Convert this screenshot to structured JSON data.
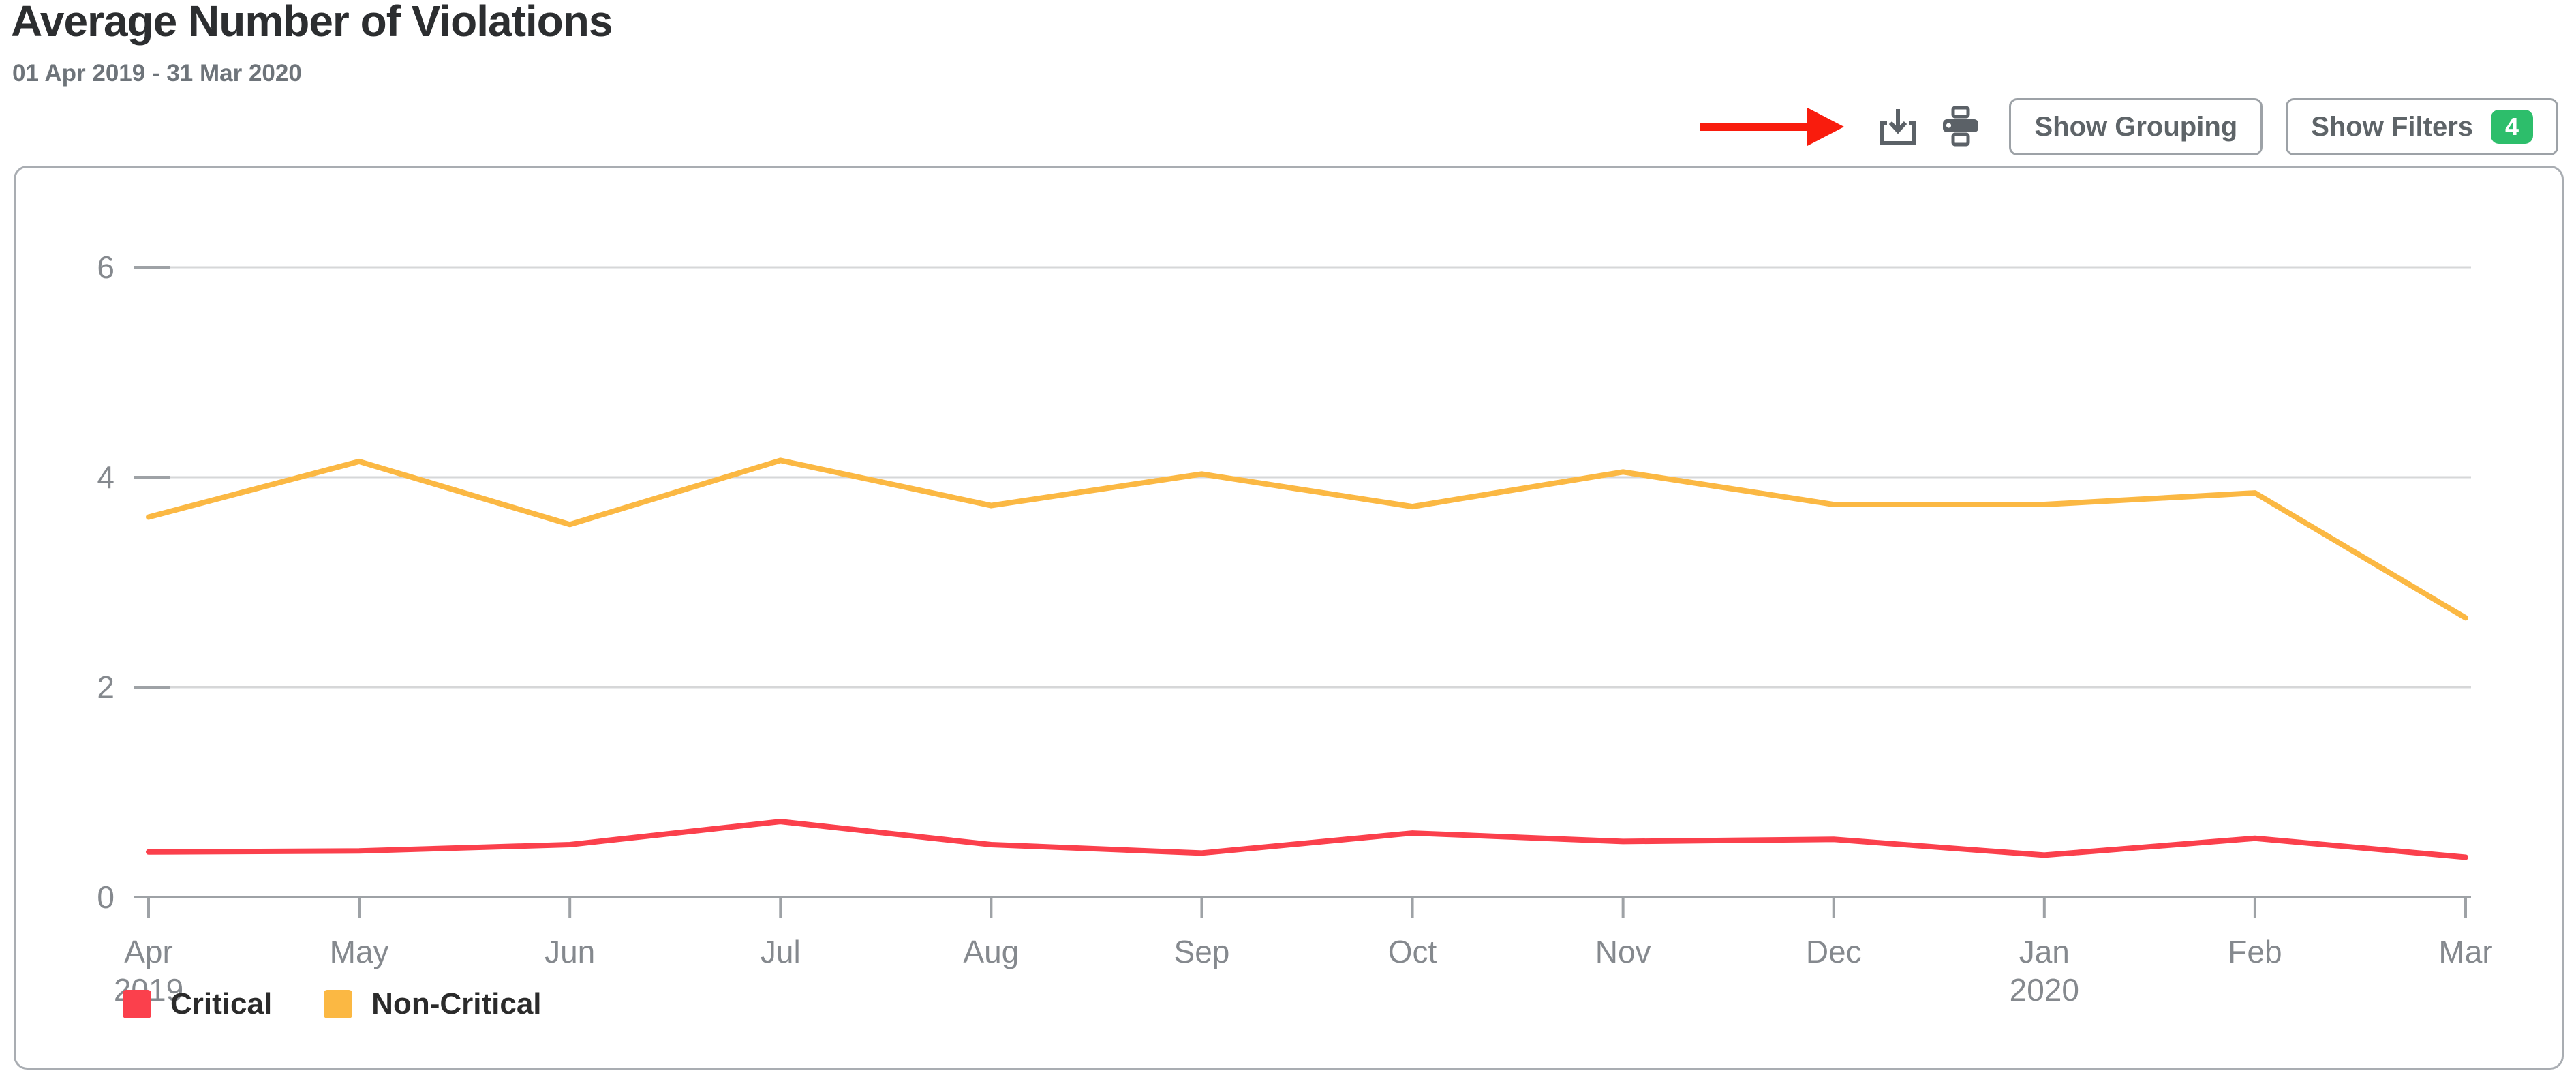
{
  "header": {
    "title": "Average Number of Violations",
    "date_range": "01 Apr 2019 - 31 Mar 2020"
  },
  "toolbar": {
    "download_icon": "download-icon",
    "print_icon": "print-icon",
    "show_grouping_label": "Show Grouping",
    "show_filters_label": "Show Filters",
    "filters_badge_count": "4",
    "badge_color": "#2dbe6b",
    "icon_color": "#5b6167",
    "annotation_arrow_color": "#f91c0d"
  },
  "chart_data": {
    "type": "line",
    "title": "Average Number of Violations",
    "xlabel": "",
    "ylabel": "",
    "grid": true,
    "legend_position": "bottom-left",
    "ylim": [
      0,
      6.4
    ],
    "y_ticks": [
      0,
      2,
      4,
      6
    ],
    "x_ticks": [
      {
        "label": "Apr",
        "sub": "2019"
      },
      {
        "label": "May"
      },
      {
        "label": "Jun"
      },
      {
        "label": "Jul"
      },
      {
        "label": "Aug"
      },
      {
        "label": "Sep"
      },
      {
        "label": "Oct"
      },
      {
        "label": "Nov"
      },
      {
        "label": "Dec"
      },
      {
        "label": "Jan",
        "sub": "2020"
      },
      {
        "label": "Feb"
      },
      {
        "label": "Mar"
      }
    ],
    "series": [
      {
        "name": "Critical",
        "color": "#fb404c",
        "values": [
          0.43,
          0.44,
          0.5,
          0.72,
          0.5,
          0.42,
          0.61,
          0.53,
          0.55,
          0.4,
          0.56,
          0.38
        ]
      },
      {
        "name": "Non-Critical",
        "color": "#fbb843",
        "values": [
          3.62,
          4.15,
          3.55,
          4.16,
          3.73,
          4.03,
          3.72,
          4.05,
          3.74,
          3.74,
          3.85,
          2.66
        ]
      }
    ],
    "colors": {
      "gridline": "#d6d7d8",
      "axis": "#9ea2a6",
      "tick_label": "#85898e"
    }
  }
}
